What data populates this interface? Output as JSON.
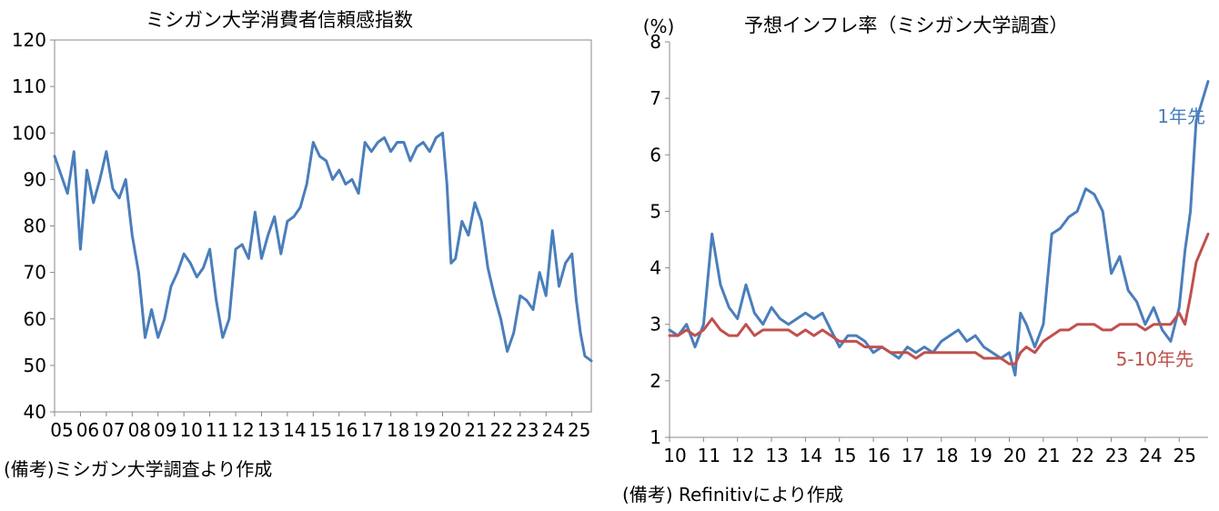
{
  "left_chart": {
    "title": "ミシガン大学消費者信頼感指数",
    "note": "(備考)ミシガン大学調査より作成"
  },
  "right_chart": {
    "title": "予想インフレ率（ミシガン大学調査）",
    "note": "(備考) Refinitivにより作成"
  },
  "colors": {
    "blue": "#4a7ebb",
    "red": "#c0504d"
  },
  "chart_data": [
    {
      "type": "line",
      "title": "ミシガン大学消費者信頼感指数",
      "xlabel": "",
      "ylabel": "",
      "ylim": [
        40,
        120
      ],
      "yticks": [
        40,
        50,
        60,
        70,
        80,
        90,
        100,
        110,
        120
      ],
      "x_tick_labels": [
        "05",
        "06",
        "07",
        "08",
        "09",
        "10",
        "11",
        "12",
        "13",
        "14",
        "15",
        "16",
        "17",
        "18",
        "19",
        "20",
        "21",
        "22",
        "23",
        "24",
        "25"
      ],
      "x_range": [
        2005.0,
        2025.75
      ],
      "grid": false,
      "series": [
        {
          "x": [
            2005.0,
            2005.25,
            2005.5,
            2005.75,
            2006.0,
            2006.25,
            2006.5,
            2006.75,
            2007.0,
            2007.25,
            2007.5,
            2007.75,
            2008.0,
            2008.25,
            2008.5,
            2008.75,
            2009.0,
            2009.25,
            2009.5,
            2009.75,
            2010.0,
            2010.25,
            2010.5,
            2010.75,
            2011.0,
            2011.25,
            2011.5,
            2011.75,
            2012.0,
            2012.25,
            2012.5,
            2012.75,
            2013.0,
            2013.25,
            2013.5,
            2013.75,
            2014.0,
            2014.25,
            2014.5,
            2014.75,
            2015.0,
            2015.25,
            2015.5,
            2015.75,
            2016.0,
            2016.25,
            2016.5,
            2016.75,
            2017.0,
            2017.25,
            2017.5,
            2017.75,
            2018.0,
            2018.25,
            2018.5,
            2018.75,
            2019.0,
            2019.25,
            2019.5,
            2019.75,
            2020.0,
            2020.17,
            2020.33,
            2020.5,
            2020.75,
            2021.0,
            2021.25,
            2021.5,
            2021.75,
            2022.0,
            2022.25,
            2022.5,
            2022.75,
            2023.0,
            2023.25,
            2023.5,
            2023.75,
            2024.0,
            2024.25,
            2024.5,
            2024.75,
            2025.0,
            2025.17,
            2025.33,
            2025.5,
            2025.75
          ],
          "values": [
            95,
            91,
            87,
            96,
            75,
            92,
            85,
            90,
            96,
            88,
            86,
            90,
            78,
            70,
            56,
            62,
            56,
            60,
            67,
            70,
            74,
            72,
            69,
            71,
            75,
            64,
            56,
            60,
            75,
            76,
            73,
            83,
            73,
            78,
            82,
            74,
            81,
            82,
            84,
            89,
            98,
            95,
            94,
            90,
            92,
            89,
            90,
            87,
            98,
            96,
            98,
            99,
            96,
            98,
            98,
            94,
            97,
            98,
            96,
            99,
            100,
            89,
            72,
            73,
            81,
            78,
            85,
            81,
            71,
            65,
            60,
            53,
            57,
            65,
            64,
            62,
            70,
            65,
            79,
            67,
            72,
            74,
            64,
            57,
            52,
            51
          ]
        }
      ]
    },
    {
      "type": "line",
      "title": "予想インフレ率（ミシガン大学調査）",
      "xlabel": "",
      "ylabel": "(%)",
      "ylim": [
        1,
        8
      ],
      "yticks": [
        1,
        2,
        3,
        4,
        5,
        6,
        7,
        8
      ],
      "x_tick_labels": [
        "10",
        "11",
        "12",
        "13",
        "14",
        "15",
        "16",
        "17",
        "18",
        "19",
        "20",
        "21",
        "22",
        "23",
        "24",
        "25"
      ],
      "x_range": [
        2010.0,
        2025.85
      ],
      "grid": false,
      "series": [
        {
          "name": "1年先",
          "x": [
            2010.0,
            2010.25,
            2010.5,
            2010.75,
            2011.0,
            2011.25,
            2011.5,
            2011.75,
            2012.0,
            2012.25,
            2012.5,
            2012.75,
            2013.0,
            2013.25,
            2013.5,
            2013.75,
            2014.0,
            2014.25,
            2014.5,
            2014.75,
            2015.0,
            2015.25,
            2015.5,
            2015.75,
            2016.0,
            2016.25,
            2016.5,
            2016.75,
            2017.0,
            2017.25,
            2017.5,
            2017.75,
            2018.0,
            2018.25,
            2018.5,
            2018.75,
            2019.0,
            2019.25,
            2019.5,
            2019.75,
            2020.0,
            2020.17,
            2020.33,
            2020.5,
            2020.75,
            2021.0,
            2021.25,
            2021.5,
            2021.75,
            2022.0,
            2022.25,
            2022.5,
            2022.75,
            2023.0,
            2023.25,
            2023.5,
            2023.75,
            2024.0,
            2024.25,
            2024.5,
            2024.75,
            2025.0,
            2025.17,
            2025.33,
            2025.5,
            2025.85
          ],
          "values": [
            2.9,
            2.8,
            3.0,
            2.6,
            3.0,
            4.6,
            3.7,
            3.3,
            3.1,
            3.7,
            3.2,
            3.0,
            3.3,
            3.1,
            3.0,
            3.1,
            3.2,
            3.1,
            3.2,
            2.9,
            2.6,
            2.8,
            2.8,
            2.7,
            2.5,
            2.6,
            2.5,
            2.4,
            2.6,
            2.5,
            2.6,
            2.5,
            2.7,
            2.8,
            2.9,
            2.7,
            2.8,
            2.6,
            2.5,
            2.4,
            2.5,
            2.1,
            3.2,
            3.0,
            2.6,
            3.0,
            4.6,
            4.7,
            4.9,
            5.0,
            5.4,
            5.3,
            5.0,
            3.9,
            4.2,
            3.6,
            3.4,
            3.0,
            3.3,
            2.9,
            2.7,
            3.3,
            4.3,
            5.0,
            6.6,
            7.3
          ]
        },
        {
          "name": "5-10年先",
          "x": [
            2010.0,
            2010.25,
            2010.5,
            2010.75,
            2011.0,
            2011.25,
            2011.5,
            2011.75,
            2012.0,
            2012.25,
            2012.5,
            2012.75,
            2013.0,
            2013.25,
            2013.5,
            2013.75,
            2014.0,
            2014.25,
            2014.5,
            2014.75,
            2015.0,
            2015.25,
            2015.5,
            2015.75,
            2016.0,
            2016.25,
            2016.5,
            2016.75,
            2017.0,
            2017.25,
            2017.5,
            2017.75,
            2018.0,
            2018.25,
            2018.5,
            2018.75,
            2019.0,
            2019.25,
            2019.5,
            2019.75,
            2020.0,
            2020.17,
            2020.33,
            2020.5,
            2020.75,
            2021.0,
            2021.25,
            2021.5,
            2021.75,
            2022.0,
            2022.25,
            2022.5,
            2022.75,
            2023.0,
            2023.25,
            2023.5,
            2023.75,
            2024.0,
            2024.25,
            2024.5,
            2024.75,
            2025.0,
            2025.17,
            2025.33,
            2025.5,
            2025.85
          ],
          "values": [
            2.8,
            2.8,
            2.9,
            2.8,
            2.9,
            3.1,
            2.9,
            2.8,
            2.8,
            3.0,
            2.8,
            2.9,
            2.9,
            2.9,
            2.9,
            2.8,
            2.9,
            2.8,
            2.9,
            2.8,
            2.7,
            2.7,
            2.7,
            2.6,
            2.6,
            2.6,
            2.5,
            2.5,
            2.5,
            2.4,
            2.5,
            2.5,
            2.5,
            2.5,
            2.5,
            2.5,
            2.5,
            2.4,
            2.4,
            2.4,
            2.3,
            2.3,
            2.5,
            2.6,
            2.5,
            2.7,
            2.8,
            2.9,
            2.9,
            3.0,
            3.0,
            3.0,
            2.9,
            2.9,
            3.0,
            3.0,
            3.0,
            2.9,
            3.0,
            3.0,
            3.0,
            3.2,
            3.0,
            3.5,
            4.1,
            4.6
          ]
        }
      ]
    }
  ]
}
